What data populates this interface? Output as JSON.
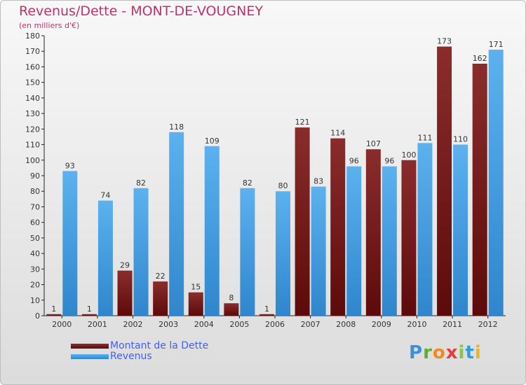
{
  "title": "Revenus/Dette - MONT-DE-VOUGNEY",
  "subtitle": "(en milliers d'€)",
  "logo": {
    "letters": [
      "P",
      "r",
      "o",
      "x",
      "i",
      "t",
      "i"
    ],
    "colors": [
      "#3c8fd8",
      "#5bb030",
      "#f08a1e",
      "#e53c3c",
      "#8bc43f",
      "#2f9fd8",
      "#f0b41e"
    ]
  },
  "colors": {
    "dette": "#7a1c1c",
    "revenus": "#4ea5e5",
    "title": "#c0306a",
    "legend_text": "#3f5ff5"
  },
  "chart_data": {
    "type": "bar",
    "title": "Revenus/Dette - MONT-DE-VOUGNEY",
    "subtitle": "(en milliers d'€)",
    "categories": [
      "2000",
      "2001",
      "2002",
      "2003",
      "2004",
      "2005",
      "2006",
      "2007",
      "2008",
      "2009",
      "2010",
      "2011",
      "2012"
    ],
    "series": [
      {
        "name": "Montant de la Dette",
        "values": [
          1,
          1,
          29,
          22,
          15,
          8,
          1,
          121,
          114,
          107,
          100,
          173,
          162
        ]
      },
      {
        "name": "Revenus",
        "values": [
          93,
          74,
          82,
          118,
          109,
          82,
          80,
          83,
          96,
          96,
          111,
          110,
          171
        ]
      }
    ],
    "ylim": [
      0,
      180
    ],
    "yticks": [
      0,
      10,
      20,
      30,
      40,
      50,
      60,
      70,
      80,
      90,
      100,
      110,
      120,
      130,
      140,
      150,
      160,
      170,
      180
    ],
    "grid": false,
    "legend_position": "bottom-left"
  }
}
